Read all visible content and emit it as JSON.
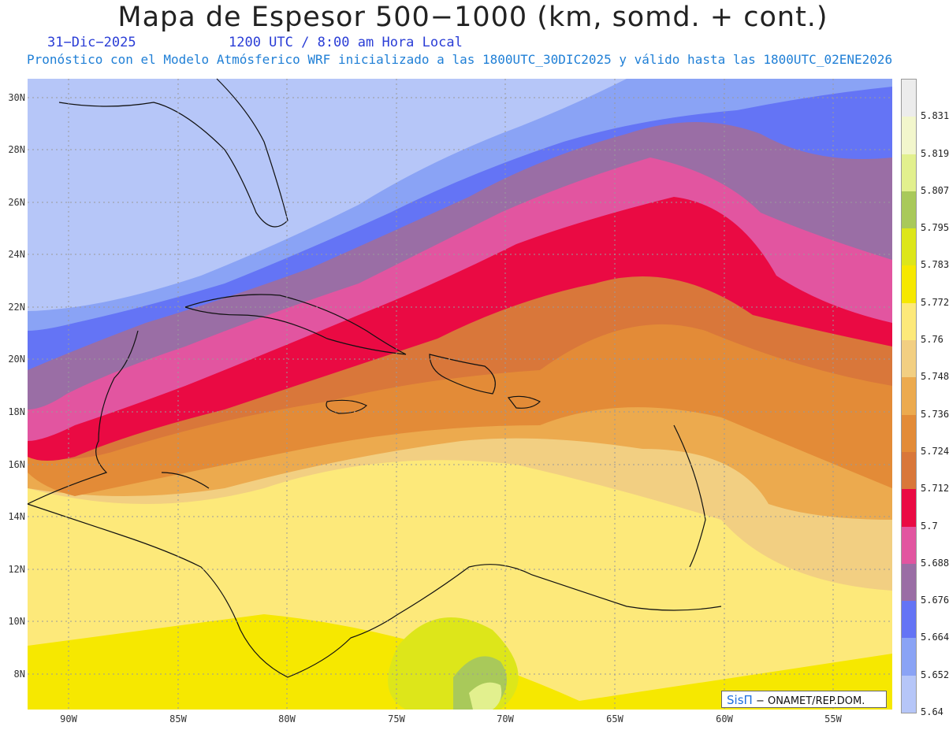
{
  "header": {
    "title": "Mapa de Espesor 500−1000 (km, somd. + cont.)",
    "date": "31−Dic−2025",
    "time": "1200 UTC / 8:00 am Hora Local",
    "forecast": "Pronóstico con el Modelo Atmósferico WRF inicializado a las 1800UTC_30DIC2025 y válido hasta las  1800UTC_02ENE2026"
  },
  "map": {
    "latitude_labels": [
      "30N",
      "28N",
      "26N",
      "24N",
      "22N",
      "20N",
      "18N",
      "16N",
      "14N",
      "12N",
      "10N",
      "8N"
    ],
    "longitude_labels": [
      "90W",
      "85W",
      "80W",
      "75W",
      "70W",
      "65W",
      "60W",
      "55W"
    ]
  },
  "legend": {
    "labels": [
      "5.831",
      "5.819",
      "5.807",
      "5.795",
      "5.783",
      "5.772",
      "5.76",
      "5.748",
      "5.736",
      "5.724",
      "5.712",
      "5.7",
      "5.688",
      "5.676",
      "5.664",
      "5.652",
      "5.64"
    ],
    "colors": [
      "#ececec",
      "#f2f6cc",
      "#e2f08e",
      "#a9c95a",
      "#dde61a",
      "#f6e800",
      "#fde97a",
      "#f2cf82",
      "#ecaa4e",
      "#e38b37",
      "#d9773a",
      "#ea0a43",
      "#e255a0",
      "#9a6ea5",
      "#6474f5",
      "#8aa3f5",
      "#b6c6f8"
    ]
  },
  "credit": {
    "brand": "SisΠ",
    "text": "− ONAMET/REP.DOM."
  }
}
